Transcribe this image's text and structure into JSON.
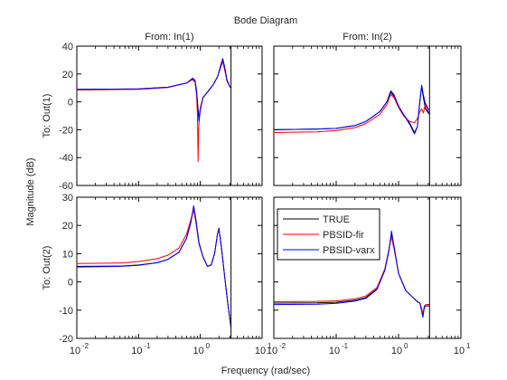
{
  "figure": {
    "title": "Bode Diagram",
    "xlabel": "Frequency  (rad/sec)",
    "ylabel": "Magnitude (dB)"
  },
  "chart_data": {
    "type": "line",
    "title": "Bode Diagram",
    "xlabel": "Frequency  (rad/sec)",
    "ylabel": "Magnitude (dB)",
    "x_scale": "log",
    "xlim": [
      0.01,
      10
    ],
    "x_ticks": [
      0.01,
      0.1,
      1,
      10
    ],
    "x_tick_labels": [
      {
        "base": "10",
        "exp": "-2"
      },
      {
        "base": "10",
        "exp": "-1"
      },
      {
        "base": "10",
        "exp": "0"
      },
      {
        "base": "10",
        "exp": "1"
      }
    ],
    "column_labels": [
      "From: In(1)",
      "From: In(2)"
    ],
    "row_labels": [
      "To: Out(1)",
      "To: Out(2)"
    ],
    "row_ylim": [
      [
        -60,
        40
      ],
      [
        -20,
        30
      ]
    ],
    "row_yticks": [
      [
        -60,
        -40,
        -20,
        0,
        20,
        40
      ],
      [
        -20,
        -10,
        0,
        10,
        20,
        30
      ]
    ],
    "nyquist_frequency": 3.14,
    "legend": {
      "placement": "inside lower-right panel, top-left",
      "entries": [
        {
          "name": "TRUE",
          "color": "#000000"
        },
        {
          "name": "PBSID-fir",
          "color": "#ff0000"
        },
        {
          "name": "PBSID-varx",
          "color": "#0000ff"
        }
      ]
    },
    "panels": [
      {
        "row": 0,
        "col": 0,
        "series": [
          {
            "name": "TRUE",
            "color": "#000000",
            "x": [
              0.01,
              0.1,
              0.3,
              0.6,
              0.75,
              0.82,
              0.87,
              0.9,
              0.95,
              1.0,
              1.1,
              1.3,
              1.6,
              1.9,
              2.1,
              2.3,
              2.5,
              2.7,
              3.0,
              3.14
            ],
            "y": [
              9,
              9.3,
              10.5,
              13.5,
              16.5,
              15,
              8,
              0,
              -12,
              -5,
              3,
              7,
              12,
              18,
              25,
              31,
              24,
              15,
              11,
              10
            ]
          },
          {
            "name": "PBSID-fir",
            "color": "#ff0000",
            "x": [
              0.01,
              0.1,
              0.3,
              0.6,
              0.75,
              0.82,
              0.87,
              0.9,
              0.92,
              0.94,
              0.97,
              1.0,
              1.1,
              1.3,
              1.6,
              1.9,
              2.1,
              2.3,
              2.5,
              2.7,
              3.0,
              3.14
            ],
            "y": [
              8.5,
              9,
              10.3,
              13.5,
              16,
              14,
              5,
              -10,
              -43,
              -20,
              -8,
              -4,
              3,
              7,
              12,
              18,
              24,
              29,
              22,
              15,
              11,
              10
            ]
          },
          {
            "name": "PBSID-varx",
            "color": "#0000ff",
            "x": [
              0.01,
              0.1,
              0.3,
              0.6,
              0.75,
              0.82,
              0.87,
              0.9,
              0.95,
              1.0,
              1.1,
              1.3,
              1.6,
              1.9,
              2.1,
              2.3,
              2.5,
              2.7,
              3.0,
              3.14
            ],
            "y": [
              9,
              9.3,
              10.5,
              13.5,
              17,
              15.5,
              8,
              -2,
              -14,
              -6,
              3,
              7,
              12,
              18,
              24,
              31,
              24,
              16,
              11,
              10
            ]
          }
        ]
      },
      {
        "row": 0,
        "col": 1,
        "series": [
          {
            "name": "TRUE",
            "color": "#000000",
            "x": [
              0.01,
              0.05,
              0.1,
              0.2,
              0.3,
              0.5,
              0.65,
              0.75,
              0.85,
              1.0,
              1.2,
              1.5,
              1.8,
              2.0,
              2.2,
              2.35,
              2.5,
              2.7,
              3.0,
              3.14
            ],
            "y": [
              -20,
              -19.5,
              -19,
              -17,
              -14,
              -7,
              0,
              7,
              4,
              -3,
              -9,
              -15,
              -22,
              -18,
              0,
              11,
              3,
              -5,
              -8,
              -9
            ]
          },
          {
            "name": "PBSID-fir",
            "color": "#ff0000",
            "x": [
              0.01,
              0.05,
              0.1,
              0.2,
              0.3,
              0.5,
              0.65,
              0.75,
              0.85,
              1.0,
              1.2,
              1.5,
              1.8,
              2.0,
              2.2,
              2.35,
              2.5,
              2.7,
              3.0,
              3.14
            ],
            "y": [
              -22,
              -21.5,
              -20.5,
              -18.5,
              -15.5,
              -9,
              -2,
              5.5,
              3,
              -4,
              -10,
              -14,
              -15,
              -12,
              -7,
              -5,
              -8,
              -1,
              -5,
              -6
            ]
          },
          {
            "name": "PBSID-varx",
            "color": "#0000ff",
            "x": [
              0.01,
              0.05,
              0.1,
              0.2,
              0.3,
              0.5,
              0.65,
              0.75,
              0.85,
              1.0,
              1.2,
              1.5,
              1.8,
              2.0,
              2.2,
              2.35,
              2.5,
              2.7,
              3.0,
              3.14
            ],
            "y": [
              -20,
              -19.5,
              -19,
              -17,
              -14,
              -7,
              0,
              8,
              5,
              -3,
              -9,
              -16,
              -23,
              -18,
              1,
              12,
              5,
              -2,
              -7,
              -8
            ]
          }
        ]
      },
      {
        "row": 1,
        "col": 0,
        "series": [
          {
            "name": "TRUE",
            "color": "#000000",
            "x": [
              0.01,
              0.05,
              0.1,
              0.2,
              0.3,
              0.45,
              0.6,
              0.7,
              0.78,
              0.85,
              0.95,
              1.1,
              1.3,
              1.5,
              1.7,
              1.9,
              2.0,
              2.2,
              2.5,
              2.8,
              3.0,
              3.14
            ],
            "y": [
              5.5,
              5.6,
              6,
              6.8,
              8,
              10.5,
              15.5,
              21,
              26.5,
              22,
              14,
              9,
              5.5,
              6,
              10,
              17,
              19,
              12,
              1,
              -8,
              -13,
              -16
            ]
          },
          {
            "name": "PBSID-fir",
            "color": "#ff0000",
            "x": [
              0.01,
              0.05,
              0.1,
              0.2,
              0.3,
              0.45,
              0.6,
              0.7,
              0.78,
              0.85,
              0.95,
              1.1,
              1.3,
              1.5,
              1.7,
              1.9,
              2.0,
              2.2,
              2.5,
              2.8,
              3.0,
              3.14
            ],
            "y": [
              6.5,
              6.7,
              7.2,
              8.2,
              9.5,
              12,
              17,
              22,
              25.5,
              21,
              13.5,
              9,
              5.5,
              6,
              10,
              17,
              19,
              12,
              1,
              -8,
              -13,
              -16
            ]
          },
          {
            "name": "PBSID-varx",
            "color": "#0000ff",
            "x": [
              0.01,
              0.05,
              0.1,
              0.2,
              0.3,
              0.45,
              0.6,
              0.7,
              0.78,
              0.85,
              0.95,
              1.1,
              1.3,
              1.5,
              1.7,
              1.9,
              2.0,
              2.2,
              2.5,
              2.8,
              3.0,
              3.14
            ],
            "y": [
              5.3,
              5.5,
              5.9,
              6.8,
              8,
              10.5,
              15.5,
              21,
              27,
              22,
              14,
              9,
              5.5,
              6,
              10,
              17,
              19,
              12,
              1,
              -8,
              -13,
              -16
            ]
          }
        ]
      },
      {
        "row": 1,
        "col": 1,
        "series": [
          {
            "name": "TRUE",
            "color": "#000000",
            "x": [
              0.01,
              0.05,
              0.1,
              0.2,
              0.3,
              0.45,
              0.6,
              0.7,
              0.77,
              0.85,
              1.0,
              1.3,
              1.7,
              2.0,
              2.2,
              2.35,
              2.45,
              2.6,
              2.8,
              3.0,
              3.14
            ],
            "y": [
              -7.5,
              -7.4,
              -7.2,
              -6.5,
              -5.5,
              -2.5,
              4,
              11,
              17,
              12,
              3,
              -3,
              -5.5,
              -7,
              -7.5,
              -10,
              -12,
              -8.5,
              -8,
              -8,
              -8
            ]
          },
          {
            "name": "PBSID-fir",
            "color": "#ff0000",
            "x": [
              0.01,
              0.05,
              0.1,
              0.2,
              0.3,
              0.45,
              0.6,
              0.7,
              0.77,
              0.85,
              1.0,
              1.3,
              1.7,
              2.0,
              2.2,
              2.35,
              2.45,
              2.6,
              2.8,
              3.0,
              3.14
            ],
            "y": [
              -7,
              -6.9,
              -6.7,
              -6,
              -5,
              -2,
              4.5,
              11.5,
              16,
              11.5,
              3,
              -3,
              -5.5,
              -7,
              -7.5,
              -9.5,
              -11.5,
              -8.5,
              -8,
              -8,
              -8
            ]
          },
          {
            "name": "PBSID-varx",
            "color": "#0000ff",
            "x": [
              0.01,
              0.05,
              0.1,
              0.2,
              0.3,
              0.45,
              0.6,
              0.7,
              0.77,
              0.85,
              1.0,
              1.3,
              1.7,
              2.0,
              2.2,
              2.35,
              2.45,
              2.6,
              2.8,
              3.0,
              3.14
            ],
            "y": [
              -8,
              -7.9,
              -7.6,
              -6.8,
              -5.8,
              -2.7,
              4,
              11,
              18,
              12.5,
              3,
              -3,
              -5.5,
              -7,
              -7.5,
              -10.5,
              -12.5,
              -9,
              -8.5,
              -8.5,
              -8.5
            ]
          }
        ]
      }
    ]
  }
}
